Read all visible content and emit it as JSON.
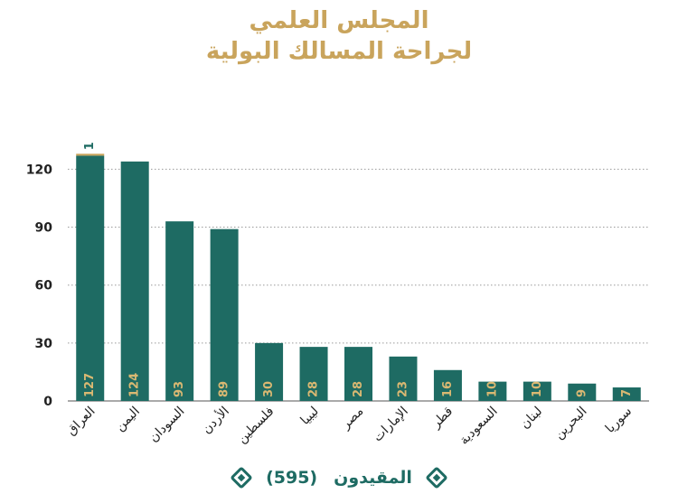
{
  "title_line1": "المجلس العلمي",
  "title_line2": "لجراحة المسالك البولية",
  "legend": {
    "label": "المقيدون",
    "total": "(595)"
  },
  "colors": {
    "bar": "#1e6b63",
    "accent": "#c9a45c",
    "label": "#d9b872"
  },
  "chart_data": {
    "type": "bar",
    "categories": [
      "العراق",
      "اليمن",
      "السودان",
      "الأردن",
      "فلسطين",
      "ليبيا",
      "مصر",
      "الإمارات",
      "قطر",
      "السعودية",
      "لبنان",
      "البحرين",
      "سوريا"
    ],
    "series": [
      {
        "values": [
          127,
          124,
          93,
          89,
          30,
          28,
          28,
          23,
          16,
          10,
          10,
          9,
          7
        ]
      },
      {
        "values": [
          1,
          0,
          0,
          0,
          0,
          0,
          0,
          0,
          0,
          0,
          0,
          0,
          0
        ]
      }
    ],
    "yticks": [
      0,
      30,
      60,
      90,
      120
    ],
    "ylim": [
      0,
      130
    ],
    "grid": true,
    "legend_position": "bottom"
  }
}
